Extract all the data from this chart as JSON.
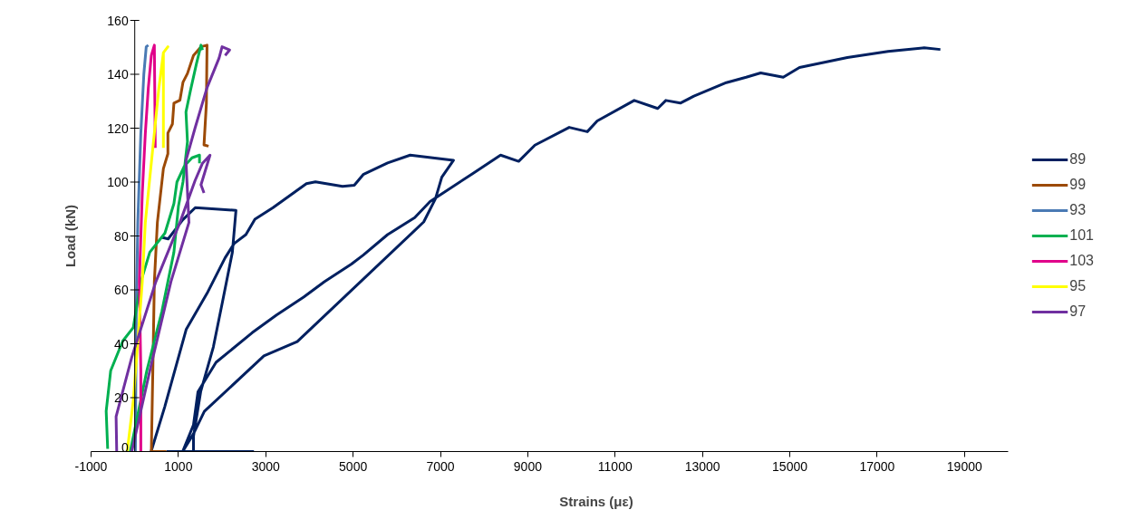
{
  "chart_data": {
    "type": "line",
    "xlabel": "Strains (με)",
    "ylabel": "Load (kN)",
    "xlim": [
      -1000,
      20000
    ],
    "xticks": [
      -1000,
      1000,
      3000,
      5000,
      7000,
      9000,
      11000,
      13000,
      15000,
      17000,
      19000
    ],
    "ylim": [
      0,
      160
    ],
    "yticks": [
      0,
      20,
      40,
      60,
      80,
      100,
      120,
      140,
      160
    ],
    "grid": false,
    "legend": "right",
    "marker": "none",
    "line_style": "solid",
    "series": [
      {
        "name": "89",
        "color": "#002060",
        "x": [
          725,
          2730,
          null,
          620,
          765,
          1100,
          1386,
          2318,
          2235,
          2007,
          1800,
          1510,
          1345,
          1345,
          null,
          375,
          687,
          1180,
          1656,
          2069,
          2276,
          2545,
          2752,
          3166,
          3931,
          4138,
          4758,
          5027,
          5232,
          5790,
          6307,
          7300,
          7031,
          6886,
          6617,
          3721,
          2958,
          1594,
          1345,
          1097,
          1345,
          1448,
          1862,
          2689,
          3247,
          3867,
          4343,
          4963,
          5232,
          5790,
          6411,
          6762,
          7736,
          8377,
          8791,
          9163,
          9949,
          10363,
          10590,
          11438,
          11976,
          12162,
          12493,
          12803,
          13547,
          14002,
          14333,
          14850,
          15222,
          16318,
          17249,
          18076,
          18448
        ],
        "values": [
          0,
          0,
          null,
          79.5,
          78.9,
          86,
          90.5,
          89.5,
          73.9,
          55.4,
          38.8,
          22.2,
          5.6,
          0,
          null,
          0,
          16.6,
          45.4,
          58.7,
          71.9,
          77.2,
          80.5,
          86.2,
          90.5,
          99.4,
          100.1,
          98.4,
          98.8,
          102.8,
          107.1,
          110,
          108.1,
          101.8,
          93.8,
          85.2,
          40.8,
          35.5,
          14.9,
          6.6,
          0,
          9.9,
          22.2,
          33.1,
          44.1,
          50.7,
          57.3,
          63,
          69.6,
          72.9,
          80.5,
          86.8,
          92.8,
          103.1,
          110,
          107.7,
          113.7,
          120.3,
          118.7,
          122.7,
          130.3,
          127.3,
          130.3,
          129.3,
          131.9,
          136.9,
          138.9,
          140.5,
          138.9,
          142.5,
          146.2,
          148.5,
          149.8,
          149.2
        ]
      },
      {
        "name": "99",
        "color": "#9c4a06",
        "x": [
          725,
          380,
          414,
          449,
          518,
          656,
          759,
          759,
          862,
          897,
          1035,
          1104,
          1207,
          1345,
          1517,
          1655,
          1641,
          1586,
          1690
        ],
        "values": [
          0,
          0,
          30,
          63,
          85,
          105,
          110.5,
          118.2,
          121.5,
          129.3,
          130.4,
          137,
          140.3,
          147,
          150.2,
          150.8,
          129.3,
          113.8,
          113.3
        ]
      },
      {
        "name": "93",
        "color": "#4a7ab4",
        "x": [
          15,
          35,
          70,
          139,
          208,
          263,
          311
        ],
        "values": [
          0,
          52,
          85,
          118,
          140,
          150.2,
          150.8
        ]
      },
      {
        "name": "101",
        "color": "#00b050",
        "x": [
          -620,
          -654,
          -551,
          -275,
          -34,
          139,
          345,
          690,
          897,
          966,
          1138,
          1310,
          1483,
          1483,
          null,
          -103,
          276,
          621,
          897,
          1000,
          1104,
          1207,
          1173,
          1276,
          1414,
          1517,
          1552
        ],
        "values": [
          1,
          15,
          30,
          41,
          46,
          63,
          74,
          81,
          92,
          100,
          106,
          109,
          110,
          107,
          null,
          0,
          30,
          52,
          74,
          91,
          100,
          115,
          126,
          134,
          144,
          150.8,
          149
        ]
      },
      {
        "name": "103",
        "color": "#e0008a",
        "x": [
          139,
          139,
          105,
          173,
          242,
          311,
          380,
          449,
          470
        ],
        "values": [
          0,
          30,
          63,
          96,
          118,
          135,
          147,
          150.8,
          112.7
        ]
      },
      {
        "name": "95",
        "color": "#ffff00",
        "x": [
          -172,
          -34,
          70,
          173,
          242,
          345,
          449,
          552,
          656,
          759,
          656,
          656
        ],
        "values": [
          0,
          18.8,
          40.8,
          63,
          85,
          101.6,
          118.2,
          134.8,
          148,
          150.2,
          148,
          112.7
        ]
      },
      {
        "name": "97",
        "color": "#7030a0",
        "x": [
          -413,
          -427,
          -68,
          483,
          1035,
          1380,
          1552,
          1724,
          1517,
          1586,
          null,
          -68,
          345,
          828,
          1241,
          1173,
          1380,
          1655,
          1931,
          2000,
          2172,
          2069
        ],
        "values": [
          0,
          13,
          35,
          63,
          85,
          100.5,
          107,
          110,
          99,
          96,
          null,
          0,
          30,
          63,
          85,
          108,
          120,
          135,
          146,
          150.2,
          149,
          147
        ]
      }
    ]
  }
}
